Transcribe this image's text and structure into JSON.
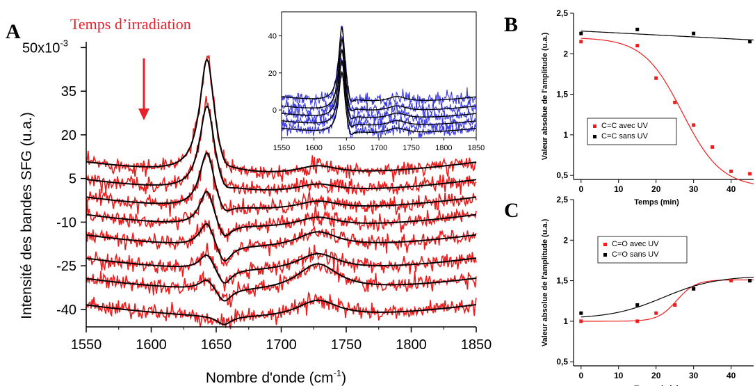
{
  "panels": {
    "a": {
      "letter": "A"
    },
    "b": {
      "letter": "B"
    },
    "c": {
      "letter": "C"
    }
  },
  "annotation": {
    "text": "Temps d’irradiation",
    "color": "#e8202a"
  },
  "colors": {
    "data_red": "#ee1c1c",
    "fit_black": "#000000",
    "inset_blue": "#3a3ae8"
  },
  "chart_data": [
    {
      "id": "main",
      "type": "line",
      "title": "",
      "xlabel": "Nombre d'onde (cm",
      "xlabel_sup": "-1",
      "xlabel_end": ")",
      "ylabel": "Intensité des bandes SFG (u.a.)",
      "xlim": [
        1550,
        1850
      ],
      "ylim": [
        -46,
        52
      ],
      "xticks": [
        1550,
        1600,
        1650,
        1700,
        1750,
        1800,
        1850
      ],
      "yticks": [
        -40,
        -25,
        -10,
        5,
        20,
        35,
        50
      ],
      "ytick_labels": [
        "-40",
        "-25",
        "-10",
        "5",
        "20",
        "35",
        "50x10"
      ],
      "ytick_top_sup": "-3",
      "arrow": "down",
      "series": [
        {
          "offset": 6.0,
          "peak": 40.0,
          "dip": 4.0,
          "b2": 3.0
        },
        {
          "offset": 0.0,
          "peak": 30.0,
          "dip": 4.0,
          "b2": 2.8
        },
        {
          "offset": -6.0,
          "peak": 20.0,
          "dip": 4.5,
          "b2": 3.0
        },
        {
          "offset": -12.0,
          "peak": 13.0,
          "dip": 6.0,
          "b2": 3.5
        },
        {
          "offset": -19.0,
          "peak": 9.0,
          "dip": 7.0,
          "b2": 5.5
        },
        {
          "offset": -27.0,
          "peak": 6.0,
          "dip": 6.0,
          "b2": 6.0
        },
        {
          "offset": -34.0,
          "peak": 4.0,
          "dip": 5.0,
          "b2": 9.5
        },
        {
          "offset": -43.0,
          "peak": 0.0,
          "dip": 3.0,
          "b2": 6.0
        }
      ]
    },
    {
      "id": "inset",
      "type": "line",
      "xlim": [
        1550,
        1850
      ],
      "ylim": [
        -15,
        53
      ],
      "xticks": [
        1550,
        1600,
        1650,
        1700,
        1750,
        1800,
        1850
      ],
      "yticks": [
        0,
        20,
        40
      ],
      "series": [
        {
          "offset": 4.0,
          "peak": 41.0,
          "b2": 3.0
        },
        {
          "offset": -1.0,
          "peak": 40.0,
          "b2": 3.0
        },
        {
          "offset": -5.0,
          "peak": 38.0,
          "b2": 3.0
        },
        {
          "offset": -9.0,
          "peak": 36.0,
          "b2": 3.0
        },
        {
          "offset": -13.0,
          "peak": 34.0,
          "b2": 3.0
        }
      ]
    },
    {
      "id": "B",
      "type": "scatter",
      "xlabel": "Temps (min)",
      "ylabel": "Valeur absolue de l'amplitude (u.a.)",
      "xlim": [
        -2,
        46
      ],
      "ylim": [
        0.45,
        2.5
      ],
      "xticks": [
        0,
        10,
        20,
        30,
        40
      ],
      "yticks": [
        0.5,
        1,
        1.5,
        2,
        2.5
      ],
      "ytick_labels": [
        "0,5",
        "1",
        "1,5",
        "2",
        "2,5"
      ],
      "series": [
        {
          "name": "C=C avec UV",
          "color": "#ee1c1c",
          "x": [
            0,
            15,
            20,
            25,
            30,
            35,
            40,
            45
          ],
          "y": [
            2.15,
            2.1,
            1.7,
            1.4,
            1.12,
            0.85,
            0.55,
            0.52
          ],
          "fit": {
            "kind": "sigmoid",
            "A1": 2.2,
            "A2": 0.35,
            "x0": 27,
            "dx": 5.2
          }
        },
        {
          "name": "C=C sans UV",
          "color": "#000000",
          "x": [
            0,
            15,
            30,
            45
          ],
          "y": [
            2.25,
            2.3,
            2.25,
            2.15
          ],
          "fit": {
            "kind": "linear",
            "y0": 2.28,
            "slope": -0.0024
          }
        }
      ]
    },
    {
      "id": "C",
      "type": "scatter",
      "xlabel": "Temps (min)",
      "ylabel": "Valeur absolue de l'amplitude (u.a.)",
      "xlim": [
        -2,
        46
      ],
      "ylim": [
        0.45,
        2.5
      ],
      "xticks": [
        0,
        10,
        20,
        30,
        40
      ],
      "yticks": [
        0.5,
        1,
        1.5,
        2,
        2.5
      ],
      "ytick_labels": [
        "0,5",
        "1",
        "1,5",
        "2",
        "2,5"
      ],
      "series": [
        {
          "name": "C=O avec UV",
          "color": "#ee1c1c",
          "x": [
            0,
            15,
            20,
            25,
            30,
            40,
            45
          ],
          "y": [
            1.0,
            1.0,
            1.1,
            1.2,
            1.4,
            1.5,
            1.5
          ],
          "fit": {
            "kind": "sigmoid",
            "A1": 1.0,
            "A2": 1.51,
            "x0": 25.5,
            "dx": 2.5
          }
        },
        {
          "name": "C=O sans UV",
          "color": "#000000",
          "x": [
            0,
            15,
            30,
            45
          ],
          "y": [
            1.1,
            1.2,
            1.4,
            1.5
          ],
          "fit": {
            "kind": "sigmoid",
            "A1": 1.03,
            "A2": 1.56,
            "x0": 22,
            "dx": 7
          }
        }
      ]
    }
  ]
}
